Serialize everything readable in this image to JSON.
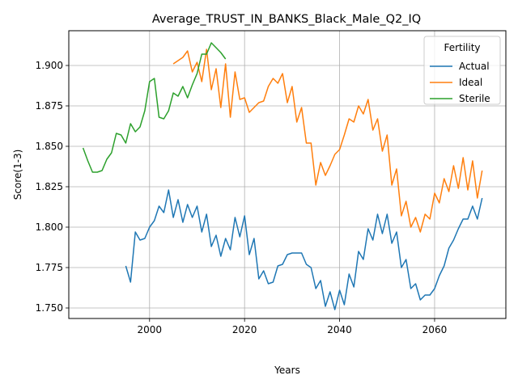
{
  "chart_data": {
    "type": "line",
    "title": "Average_TRUST_IN_BANKS_Black_Male_Q2_IQ",
    "xlabel": "Years",
    "ylabel": "Score(1-3)",
    "xlim": [
      1983,
      2075
    ],
    "ylim": [
      1.7435,
      1.9215
    ],
    "xticks": [
      2000,
      2020,
      2040,
      2060
    ],
    "yticks": [
      1.75,
      1.775,
      1.8,
      1.825,
      1.85,
      1.875,
      1.9
    ],
    "ytick_labels": [
      "1.750",
      "1.775",
      "1.800",
      "1.825",
      "1.850",
      "1.875",
      "1.900"
    ],
    "grid": true,
    "legend": {
      "title": "Fertility",
      "placement": "top-right"
    },
    "series": [
      {
        "name": "Actual",
        "color": "#1f77b4",
        "x": [
          1995,
          1996,
          1997,
          1998,
          1999,
          2000,
          2001,
          2002,
          2003,
          2004,
          2005,
          2006,
          2007,
          2008,
          2009,
          2010,
          2011,
          2012,
          2013,
          2014,
          2015,
          2016,
          2017,
          2018,
          2019,
          2020,
          2021,
          2022,
          2023,
          2024,
          2025,
          2026,
          2027,
          2028,
          2029,
          2030,
          2031,
          2032,
          2033,
          2034,
          2035,
          2036,
          2037,
          2038,
          2039,
          2040,
          2041,
          2042,
          2043,
          2044,
          2045,
          2046,
          2047,
          2048,
          2049,
          2050,
          2051,
          2052,
          2053,
          2054,
          2055,
          2056,
          2057,
          2058,
          2059,
          2060,
          2061,
          2062,
          2063,
          2064,
          2065,
          2066,
          2067,
          2068,
          2069,
          2070
        ],
        "y": [
          1.776,
          1.766,
          1.797,
          1.792,
          1.793,
          1.8,
          1.804,
          1.813,
          1.809,
          1.823,
          1.806,
          1.817,
          1.803,
          1.814,
          1.806,
          1.813,
          1.797,
          1.808,
          1.788,
          1.795,
          1.782,
          1.793,
          1.786,
          1.806,
          1.794,
          1.807,
          1.783,
          1.793,
          1.768,
          1.773,
          1.765,
          1.766,
          1.776,
          1.777,
          1.783,
          1.784,
          1.784,
          1.784,
          1.777,
          1.775,
          1.762,
          1.767,
          1.751,
          1.76,
          1.749,
          1.761,
          1.752,
          1.771,
          1.763,
          1.785,
          1.78,
          1.799,
          1.792,
          1.808,
          1.796,
          1.808,
          1.79,
          1.797,
          1.775,
          1.78,
          1.762,
          1.765,
          1.755,
          1.758,
          1.758,
          1.762,
          1.77,
          1.776,
          1.787,
          1.792,
          1.799,
          1.805,
          1.805,
          1.813,
          1.805,
          1.818
        ]
      },
      {
        "name": "Ideal",
        "color": "#ff7f0e",
        "x": [
          2005,
          2006,
          2007,
          2008,
          2009,
          2010,
          2011,
          2012,
          2013,
          2014,
          2015,
          2016,
          2017,
          2018,
          2019,
          2020,
          2021,
          2022,
          2023,
          2024,
          2025,
          2026,
          2027,
          2028,
          2029,
          2030,
          2031,
          2032,
          2033,
          2034,
          2035,
          2036,
          2037,
          2038,
          2039,
          2040,
          2041,
          2042,
          2043,
          2044,
          2045,
          2046,
          2047,
          2048,
          2049,
          2050,
          2051,
          2052,
          2053,
          2054,
          2055,
          2056,
          2057,
          2058,
          2059,
          2060,
          2061,
          2062,
          2063,
          2064,
          2065,
          2066,
          2067,
          2068,
          2069,
          2070
        ],
        "y": [
          1.901,
          1.903,
          1.905,
          1.909,
          1.896,
          1.902,
          1.89,
          1.91,
          1.885,
          1.898,
          1.874,
          1.901,
          1.868,
          1.896,
          1.879,
          1.88,
          1.871,
          1.874,
          1.877,
          1.878,
          1.887,
          1.892,
          1.889,
          1.895,
          1.877,
          1.887,
          1.865,
          1.874,
          1.852,
          1.852,
          1.826,
          1.84,
          1.832,
          1.838,
          1.845,
          1.848,
          1.857,
          1.867,
          1.865,
          1.875,
          1.87,
          1.879,
          1.86,
          1.867,
          1.847,
          1.857,
          1.826,
          1.836,
          1.807,
          1.816,
          1.8,
          1.806,
          1.797,
          1.808,
          1.805,
          1.821,
          1.815,
          1.83,
          1.822,
          1.838,
          1.824,
          1.843,
          1.823,
          1.841,
          1.818,
          1.835
        ]
      },
      {
        "name": "Sterile",
        "color": "#2ca02c",
        "x": [
          1986,
          1987,
          1988,
          1989,
          1990,
          1991,
          1992,
          1993,
          1994,
          1995,
          1996,
          1997,
          1998,
          1999,
          2000,
          2001,
          2002,
          2003,
          2004,
          2005,
          2006,
          2007,
          2008,
          2009,
          2010,
          2011,
          2012,
          2013,
          2014,
          2015,
          2016
        ],
        "y": [
          1.849,
          1.841,
          1.834,
          1.834,
          1.835,
          1.842,
          1.846,
          1.858,
          1.857,
          1.852,
          1.864,
          1.859,
          1.862,
          1.872,
          1.89,
          1.892,
          1.868,
          1.867,
          1.872,
          1.883,
          1.881,
          1.887,
          1.88,
          1.888,
          1.895,
          1.907,
          1.907,
          1.914,
          1.911,
          1.908,
          1.904
        ]
      }
    ]
  }
}
